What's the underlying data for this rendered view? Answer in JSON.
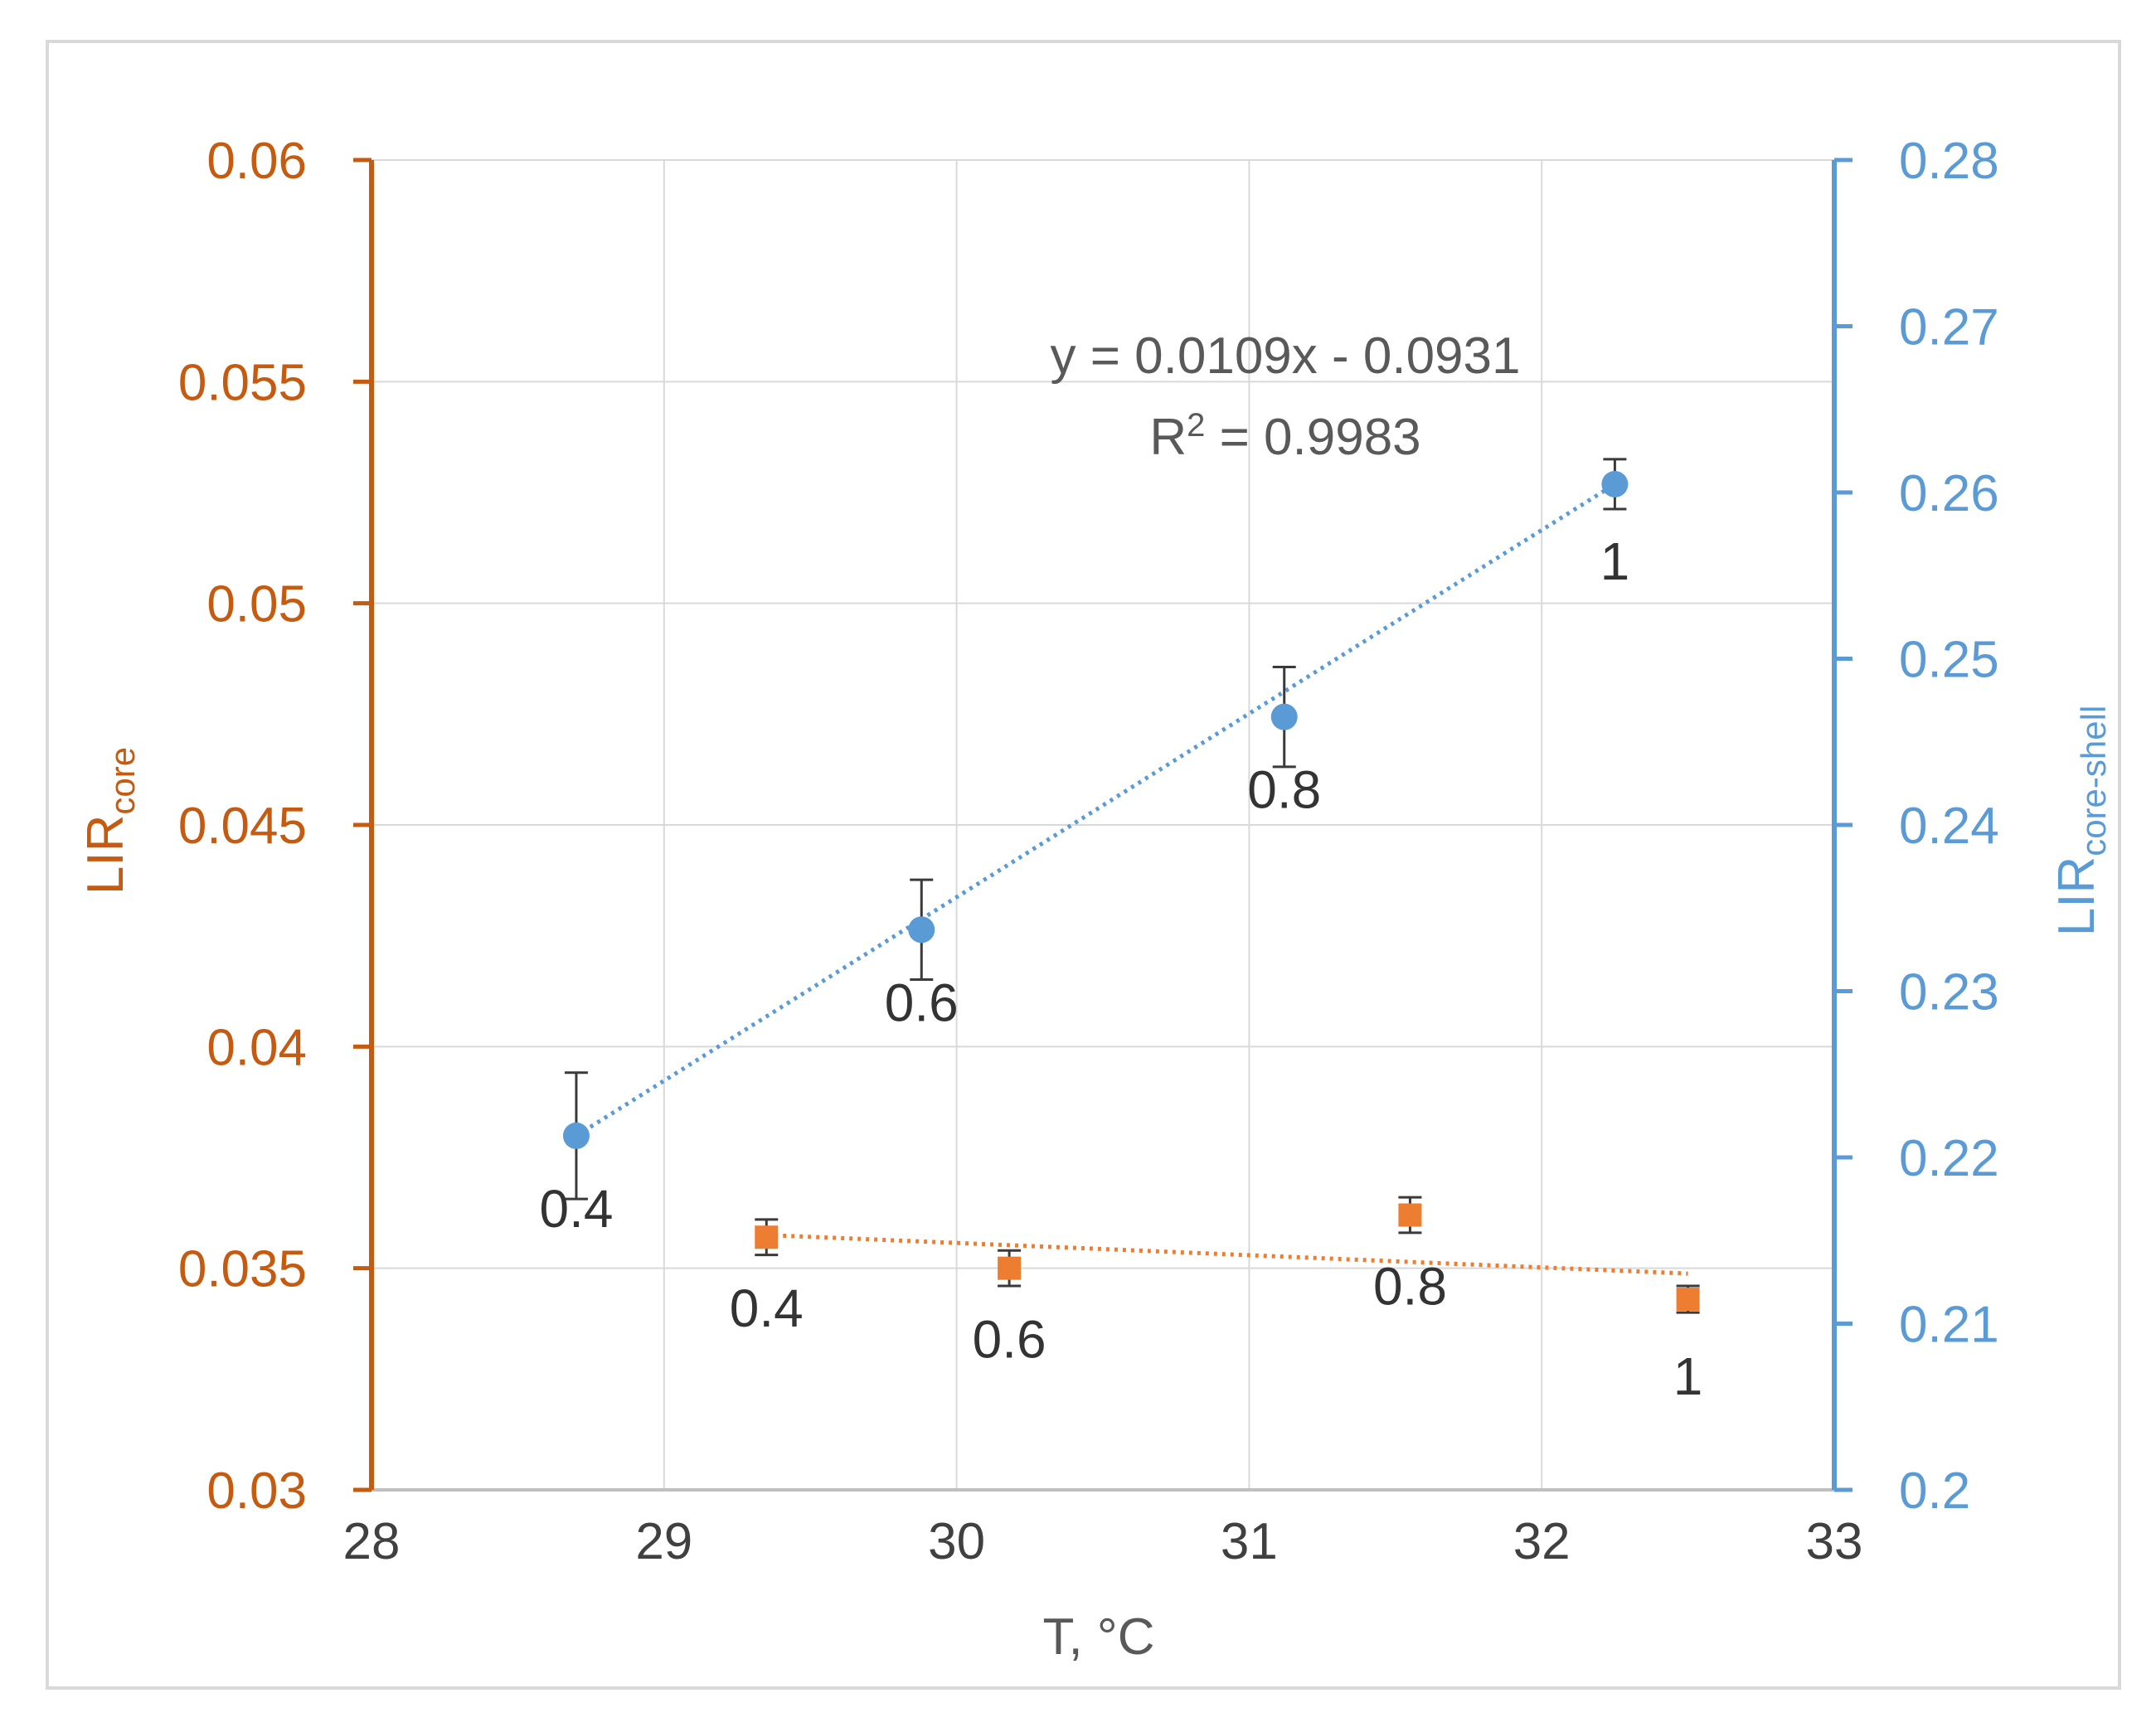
{
  "chart_data": {
    "type": "scatter",
    "x_axis": {
      "label": "T, °C",
      "range": [
        28,
        33
      ],
      "ticks": [
        28,
        29,
        30,
        31,
        32,
        33
      ],
      "tick_labels": [
        "28",
        "29",
        "30",
        "31",
        "32",
        "33"
      ]
    },
    "y_axis_left": {
      "label_main": "LIR",
      "label_sub": "core",
      "range": [
        0.03,
        0.06
      ],
      "ticks": [
        0.03,
        0.035,
        0.04,
        0.045,
        0.05,
        0.055,
        0.06
      ],
      "tick_labels": [
        "0.03",
        "0.035",
        "0.04",
        "0.045",
        "0.05",
        "0.055",
        "0.06"
      ],
      "color": "#c55a11"
    },
    "y_axis_right": {
      "label_main": "LIR",
      "label_sub": "core-shell",
      "range": [
        0.2,
        0.28
      ],
      "ticks": [
        0.2,
        0.21,
        0.22,
        0.23,
        0.24,
        0.25,
        0.26,
        0.27,
        0.28
      ],
      "tick_labels": [
        "0.2",
        "0.21",
        "0.22",
        "0.23",
        "0.24",
        "0.25",
        "0.26",
        "0.27",
        "0.28"
      ],
      "color": "#5b9bd5"
    },
    "series": [
      {
        "name": "LIR core-shell",
        "axis": "right",
        "marker": "circle",
        "color": "#5b9bd5",
        "points": [
          {
            "x": 28.7,
            "y": 0.2213,
            "err": 0.0038,
            "label": "0.4"
          },
          {
            "x": 29.88,
            "y": 0.2337,
            "err": 0.003,
            "label": "0.6"
          },
          {
            "x": 31.12,
            "y": 0.2465,
            "err": 0.003,
            "label": "0.8"
          },
          {
            "x": 32.25,
            "y": 0.2605,
            "err": 0.0015,
            "label": "1"
          }
        ],
        "trendline": {
          "type": "linear",
          "x_range": [
            28.7,
            32.25
          ],
          "y_range": [
            0.2213,
            0.2605
          ]
        }
      },
      {
        "name": "LIR core",
        "axis": "left",
        "marker": "square",
        "color": "#ed7d31",
        "points": [
          {
            "x": 29.35,
            "y": 0.0357,
            "err": 0.0004,
            "label": "0.4"
          },
          {
            "x": 30.18,
            "y": 0.035,
            "err": 0.0004,
            "label": "0.6"
          },
          {
            "x": 31.55,
            "y": 0.0362,
            "err": 0.0004,
            "label": "0.8"
          },
          {
            "x": 32.5,
            "y": 0.0343,
            "err": 0.0003,
            "label": "1"
          }
        ],
        "trendline": {
          "type": "linear",
          "x_range": [
            29.35,
            32.5
          ],
          "y_range": [
            0.03575,
            0.03488
          ]
        }
      }
    ],
    "annotation": {
      "equation": "y = 0.0109x - 0.0931",
      "r2_prefix": "R",
      "r2_sup": "2",
      "r2_value": " = 0.9983"
    },
    "grid": true
  }
}
